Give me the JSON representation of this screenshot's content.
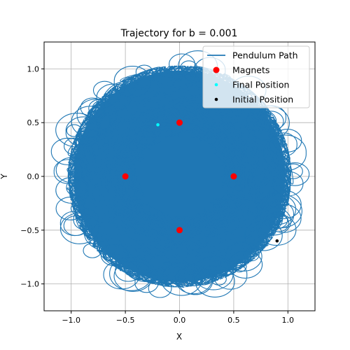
{
  "chart_data": {
    "type": "line",
    "title": "Trajectory for b = 0.001",
    "xlabel": "X",
    "ylabel": "Y",
    "xlim": [
      -1.25,
      1.25
    ],
    "ylim": [
      -1.25,
      1.25
    ],
    "xticks": [
      -1.0,
      -0.5,
      0.0,
      0.5,
      1.0
    ],
    "yticks": [
      -1.0,
      -0.5,
      0.0,
      0.5,
      1.0
    ],
    "xtick_labels": [
      "−1.0",
      "−0.5",
      "0.0",
      "0.5",
      "1.0"
    ],
    "ytick_labels": [
      "−1.0",
      "−0.5",
      "0.0",
      "0.5",
      "1.0"
    ],
    "grid": true,
    "legend_position": "top-right",
    "series": [
      {
        "name": "Pendulum Path",
        "kind": "line",
        "color": "#1f77b4",
        "extent_radius": 1.05
      },
      {
        "name": "Magnets",
        "kind": "scatter",
        "color": "#ff0000",
        "points": [
          [
            0.0,
            0.5
          ],
          [
            -0.5,
            0.0
          ],
          [
            0.5,
            0.0
          ],
          [
            0.0,
            -0.5
          ]
        ]
      },
      {
        "name": "Final Position",
        "kind": "scatter",
        "color": "#00ffff",
        "points": [
          [
            -0.2,
            0.48
          ]
        ]
      },
      {
        "name": "Initial Position",
        "kind": "scatter",
        "color": "#000000",
        "points": [
          [
            0.9,
            -0.6
          ]
        ]
      }
    ]
  }
}
